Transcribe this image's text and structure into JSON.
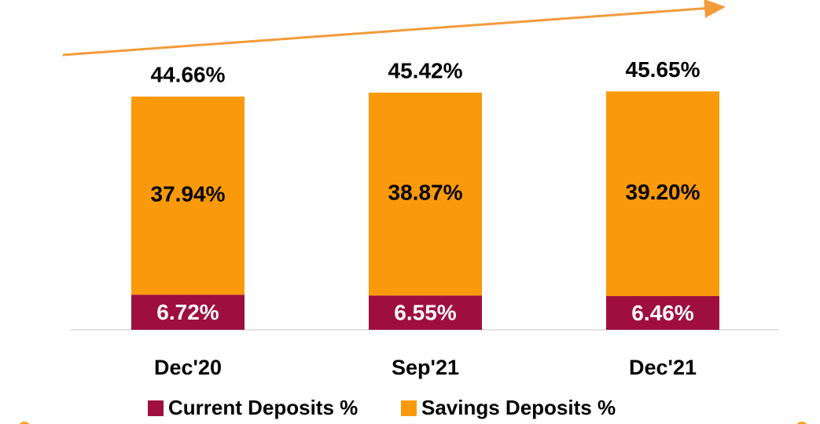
{
  "chart_data": {
    "type": "stacked_bar",
    "categories": [
      "Dec'20",
      "Sep'21",
      "Dec'21"
    ],
    "series": [
      {
        "name": "Current Deposits %",
        "color": "#9e0f3f",
        "values": [
          6.72,
          6.55,
          6.46
        ],
        "value_labels": [
          "6.72%",
          "6.55%",
          "6.46%"
        ]
      },
      {
        "name": "Savings Deposits %",
        "color": "#fa9a0a",
        "values": [
          37.94,
          38.87,
          39.2
        ],
        "value_labels": [
          "37.94%",
          "38.87%",
          "39.20%"
        ]
      }
    ],
    "totals": [
      44.66,
      45.42,
      45.65
    ],
    "total_labels": [
      "44.66%",
      "45.42%",
      "45.65%"
    ]
  }
}
